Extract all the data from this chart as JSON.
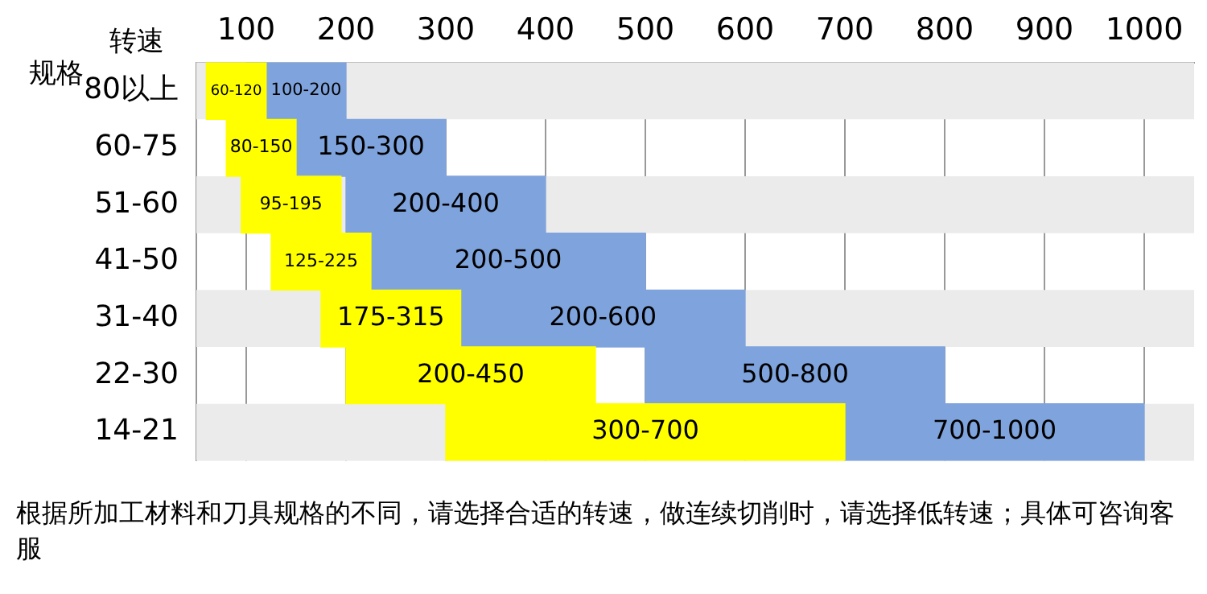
{
  "chart_data": {
    "type": "bar",
    "orientation": "horizontal",
    "xlabel": "转速",
    "ylabel": "规格",
    "categories": [
      "80以上",
      "60-75",
      "51-60",
      "41-50",
      "31-40",
      "22-30",
      "14-21"
    ],
    "series": [
      {
        "color": "#7fa3dc",
        "base": [
          100,
          150,
          200,
          200,
          200,
          500,
          700
        ],
        "values": [
          100,
          150,
          200,
          300,
          400,
          300,
          300
        ],
        "value_labels": [
          "100-200",
          "150-300",
          "200-400",
          "200-500",
          "200-600",
          "500-800",
          "700-1000"
        ]
      },
      {
        "color": "#ffff00",
        "base": [
          60,
          80,
          95,
          125,
          175,
          200,
          300
        ],
        "values": [
          60,
          70,
          100,
          100,
          140,
          250,
          400
        ],
        "value_labels": [
          "60-120",
          "80-150",
          "95-195",
          "125-225",
          "175-315",
          "200-450",
          "300-700"
        ]
      }
    ],
    "xlim": [
      50,
      1050
    ],
    "xticks": [
      100,
      200,
      300,
      400,
      500,
      600,
      700,
      800,
      900,
      1000
    ],
    "grid": "x",
    "annotations": [
      "根据所加工材料和刀具规格的不同，请选择合适的转速，做连续切削时，请选择低转速；具体可咨询客服"
    ]
  }
}
